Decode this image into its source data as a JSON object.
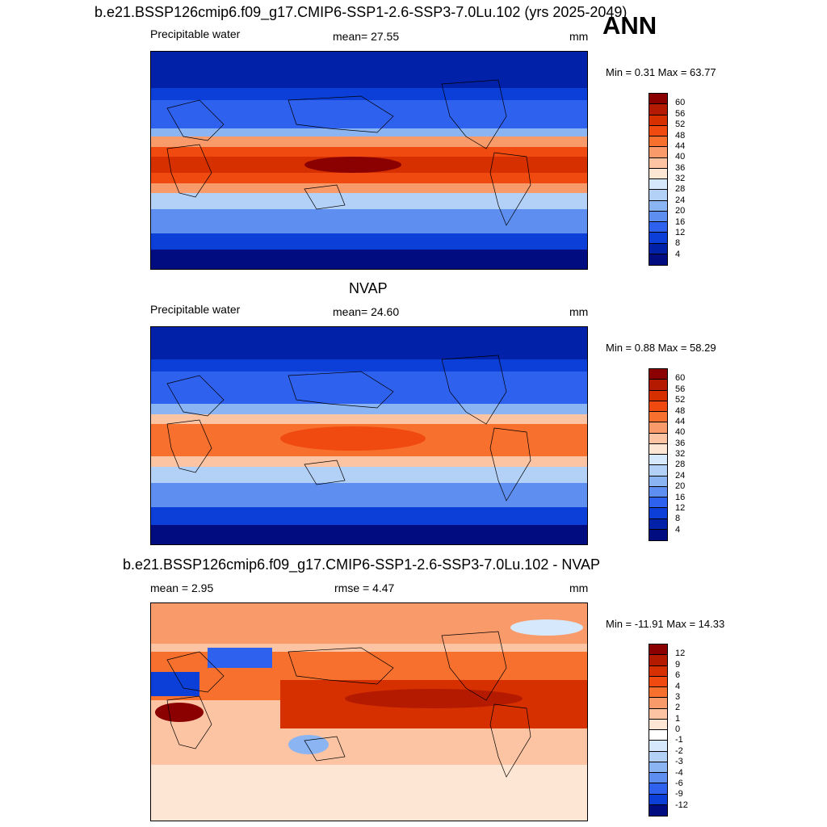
{
  "season": "ANN",
  "panels": [
    {
      "title": "b.e21.BSSP126cmip6.f09_g17.CMIP6-SSP1-2.6-SSP3-7.0Lu.102 (yrs 2025-2049)",
      "left_label": "Precipitable water",
      "center_label": "mean=  27.55",
      "units": "mm",
      "minmax": "Min =   0.31 Max =  63.77",
      "colorbar_labels": [
        "60",
        "56",
        "52",
        "48",
        "44",
        "40",
        "36",
        "32",
        "28",
        "24",
        "20",
        "16",
        "12",
        "8",
        "4"
      ],
      "colors": [
        "#8b0000",
        "#b31a00",
        "#d63000",
        "#f04a10",
        "#f7702e",
        "#f99a6a",
        "#fcc4a3",
        "#fde6d3",
        "#d6e8fb",
        "#b3d1f7",
        "#8ab4f2",
        "#5e8ff0",
        "#2f61ef",
        "#0b3fd8",
        "#0021a8",
        "#000c80"
      ]
    },
    {
      "title": "NVAP",
      "left_label": "Precipitable water",
      "center_label": "mean=  24.60",
      "units": "mm",
      "minmax": "Min =   0.88 Max =  58.29",
      "colorbar_labels": [
        "60",
        "56",
        "52",
        "48",
        "44",
        "40",
        "36",
        "32",
        "28",
        "24",
        "20",
        "16",
        "12",
        "8",
        "4"
      ],
      "colors": [
        "#8b0000",
        "#b31a00",
        "#d63000",
        "#f04a10",
        "#f7702e",
        "#f99a6a",
        "#fcc4a3",
        "#fde6d3",
        "#d6e8fb",
        "#b3d1f7",
        "#8ab4f2",
        "#5e8ff0",
        "#2f61ef",
        "#0b3fd8",
        "#0021a8",
        "#000c80"
      ]
    },
    {
      "title": "b.e21.BSSP126cmip6.f09_g17.CMIP6-SSP1-2.6-SSP3-7.0Lu.102 - NVAP",
      "left_label": "mean =   2.95",
      "center_label": "rmse =    4.47",
      "units": "mm",
      "minmax": "Min = -11.91 Max =  14.33",
      "colorbar_labels": [
        "12",
        "9",
        "6",
        "4",
        "3",
        "2",
        "1",
        "0",
        "-1",
        "-2",
        "-3",
        "-4",
        "-6",
        "-9",
        "-12"
      ],
      "colors": [
        "#8b0000",
        "#b31a00",
        "#d63000",
        "#f04a10",
        "#f7702e",
        "#f99a6a",
        "#fcc4a3",
        "#fde6d3",
        "#ffffff",
        "#d6e8fb",
        "#b3d1f7",
        "#8ab4f2",
        "#5e8ff0",
        "#2f61ef",
        "#0b3fd8",
        "#000c80"
      ]
    }
  ]
}
